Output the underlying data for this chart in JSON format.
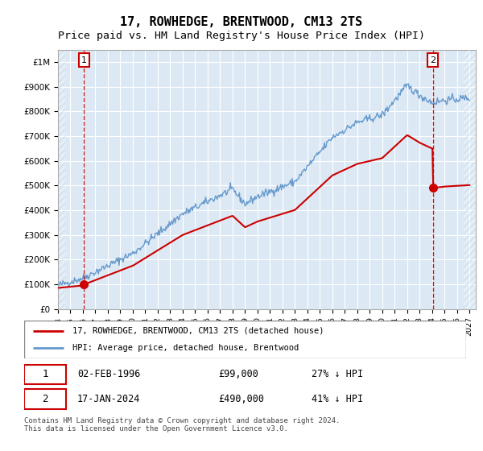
{
  "title": "17, ROWHEDGE, BRENTWOOD, CM13 2TS",
  "subtitle": "Price paid vs. HM Land Registry's House Price Index (HPI)",
  "ylim": [
    0,
    1050000
  ],
  "xlim_start": 1994.0,
  "xlim_end": 2027.5,
  "yticks": [
    0,
    100000,
    200000,
    300000,
    400000,
    500000,
    600000,
    700000,
    800000,
    900000,
    1000000
  ],
  "ytick_labels": [
    "£0",
    "£100K",
    "£200K",
    "£300K",
    "£400K",
    "£500K",
    "£600K",
    "£700K",
    "£800K",
    "£900K",
    "£1M"
  ],
  "xtick_years": [
    1994,
    1995,
    1996,
    1997,
    1998,
    1999,
    2000,
    2001,
    2002,
    2003,
    2004,
    2005,
    2006,
    2007,
    2008,
    2009,
    2010,
    2011,
    2012,
    2013,
    2014,
    2015,
    2016,
    2017,
    2018,
    2019,
    2020,
    2021,
    2022,
    2023,
    2024,
    2025,
    2026,
    2027
  ],
  "hpi_color": "#6699cc",
  "price_color": "#cc0000",
  "bg_color": "#dce9f5",
  "grid_color": "#ffffff",
  "point1_x": 1996.09,
  "point1_y": 99000,
  "point2_x": 2024.05,
  "point2_y": 490000,
  "legend_label1": "17, ROWHEDGE, BRENTWOOD, CM13 2TS (detached house)",
  "legend_label2": "HPI: Average price, detached house, Brentwood",
  "table_row1": [
    "1",
    "02-FEB-1996",
    "£99,000",
    "27% ↓ HPI"
  ],
  "table_row2": [
    "2",
    "17-JAN-2024",
    "£490,000",
    "41% ↓ HPI"
  ],
  "footer": "Contains HM Land Registry data © Crown copyright and database right 2024.\nThis data is licensed under the Open Government Licence v3.0.",
  "title_fontsize": 11,
  "subtitle_fontsize": 9.5
}
